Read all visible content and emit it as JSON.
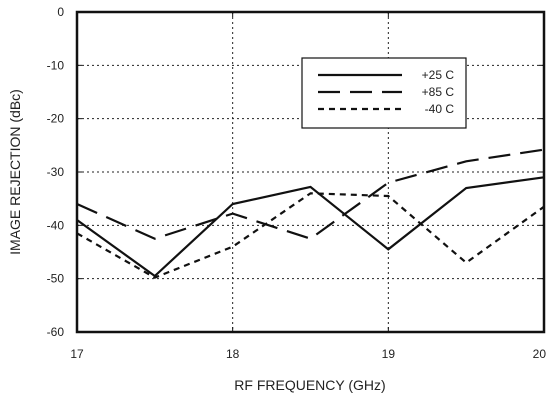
{
  "chart_data": {
    "type": "line",
    "xlabel": "RF FREQUENCY (GHz)",
    "ylabel": "IMAGE REJECTION (dBc)",
    "xlim": [
      17,
      20
    ],
    "ylim": [
      -60,
      0
    ],
    "x_ticks": [
      17,
      18,
      19,
      20
    ],
    "y_ticks": [
      0,
      -10,
      -20,
      -30,
      -40,
      -50,
      -60
    ],
    "grid": true,
    "grid_style": "dotted",
    "legend_position": "top-right",
    "series": [
      {
        "name": "+25 C",
        "style": "solid",
        "color": "#111111",
        "x": [
          17,
          17.5,
          18,
          18.5,
          19,
          19.5,
          20
        ],
        "y": [
          -39,
          -49.5,
          -36,
          -32.8,
          -44.5,
          -33,
          -31
        ]
      },
      {
        "name": "+85 C",
        "style": "long-dash",
        "color": "#111111",
        "x": [
          17,
          17.5,
          18,
          18.5,
          19,
          19.5,
          20
        ],
        "y": [
          -36,
          -42.5,
          -37.8,
          -42.5,
          -32,
          -28,
          -25.8
        ]
      },
      {
        "name": "-40 C",
        "style": "short-dash",
        "color": "#111111",
        "x": [
          17,
          17.5,
          18,
          18.5,
          19,
          19.5,
          20
        ],
        "y": [
          -41.5,
          -49.8,
          -44,
          -34,
          -34.5,
          -47,
          -36.5
        ]
      }
    ]
  }
}
